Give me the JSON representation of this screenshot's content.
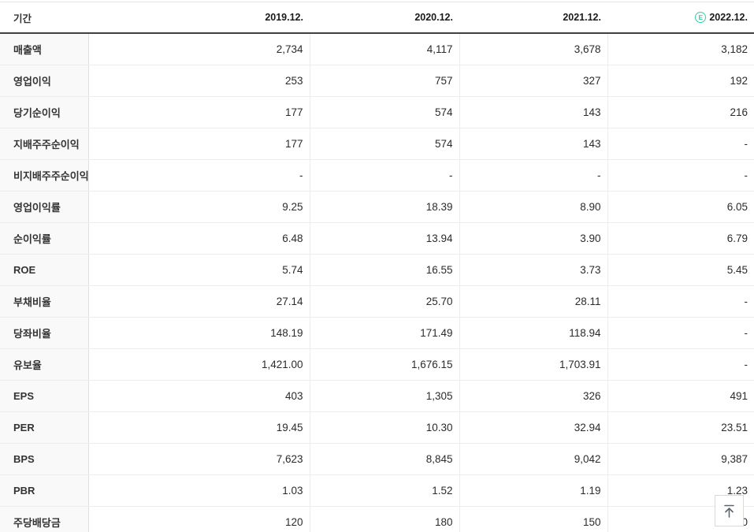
{
  "table": {
    "period_label": "기간",
    "columns": [
      "2019.12.",
      "2020.12.",
      "2021.12.",
      "2022.12."
    ],
    "estimate_badge": "E",
    "rows": [
      {
        "label": "매출액",
        "values": [
          "2,734",
          "4,117",
          "3,678",
          "3,182"
        ]
      },
      {
        "label": "영업이익",
        "values": [
          "253",
          "757",
          "327",
          "192"
        ]
      },
      {
        "label": "당기순이익",
        "values": [
          "177",
          "574",
          "143",
          "216"
        ]
      },
      {
        "label": "지배주주순이익",
        "values": [
          "177",
          "574",
          "143",
          "-"
        ]
      },
      {
        "label": "비지배주주순이익",
        "values": [
          "-",
          "-",
          "-",
          "-"
        ]
      },
      {
        "label": "영업이익률",
        "values": [
          "9.25",
          "18.39",
          "8.90",
          "6.05"
        ]
      },
      {
        "label": "순이익률",
        "values": [
          "6.48",
          "13.94",
          "3.90",
          "6.79"
        ]
      },
      {
        "label": "ROE",
        "values": [
          "5.74",
          "16.55",
          "3.73",
          "5.45"
        ]
      },
      {
        "label": "부채비율",
        "values": [
          "27.14",
          "25.70",
          "28.11",
          "-"
        ]
      },
      {
        "label": "당좌비율",
        "values": [
          "148.19",
          "171.49",
          "118.94",
          "-"
        ]
      },
      {
        "label": "유보율",
        "values": [
          "1,421.00",
          "1,676.15",
          "1,703.91",
          "-"
        ]
      },
      {
        "label": "EPS",
        "values": [
          "403",
          "1,305",
          "326",
          "491"
        ]
      },
      {
        "label": "PER",
        "values": [
          "19.45",
          "10.30",
          "32.94",
          "23.51"
        ]
      },
      {
        "label": "BPS",
        "values": [
          "7,623",
          "8,845",
          "9,042",
          "9,387"
        ]
      },
      {
        "label": "PBR",
        "values": [
          "1.03",
          "1.52",
          "1.19",
          "1.23"
        ]
      },
      {
        "label": "주당배당금",
        "values": [
          "120",
          "180",
          "150",
          "0"
        ]
      }
    ]
  },
  "scroll_top_button": {
    "icon": "arrow-up-to-top"
  },
  "colors": {
    "estimate_badge": "#35d0a4",
    "header_underline": "#404040",
    "row_border": "#ededed",
    "label_column_bg": "#f9f9f9",
    "value_text": "#2b2b2b"
  }
}
